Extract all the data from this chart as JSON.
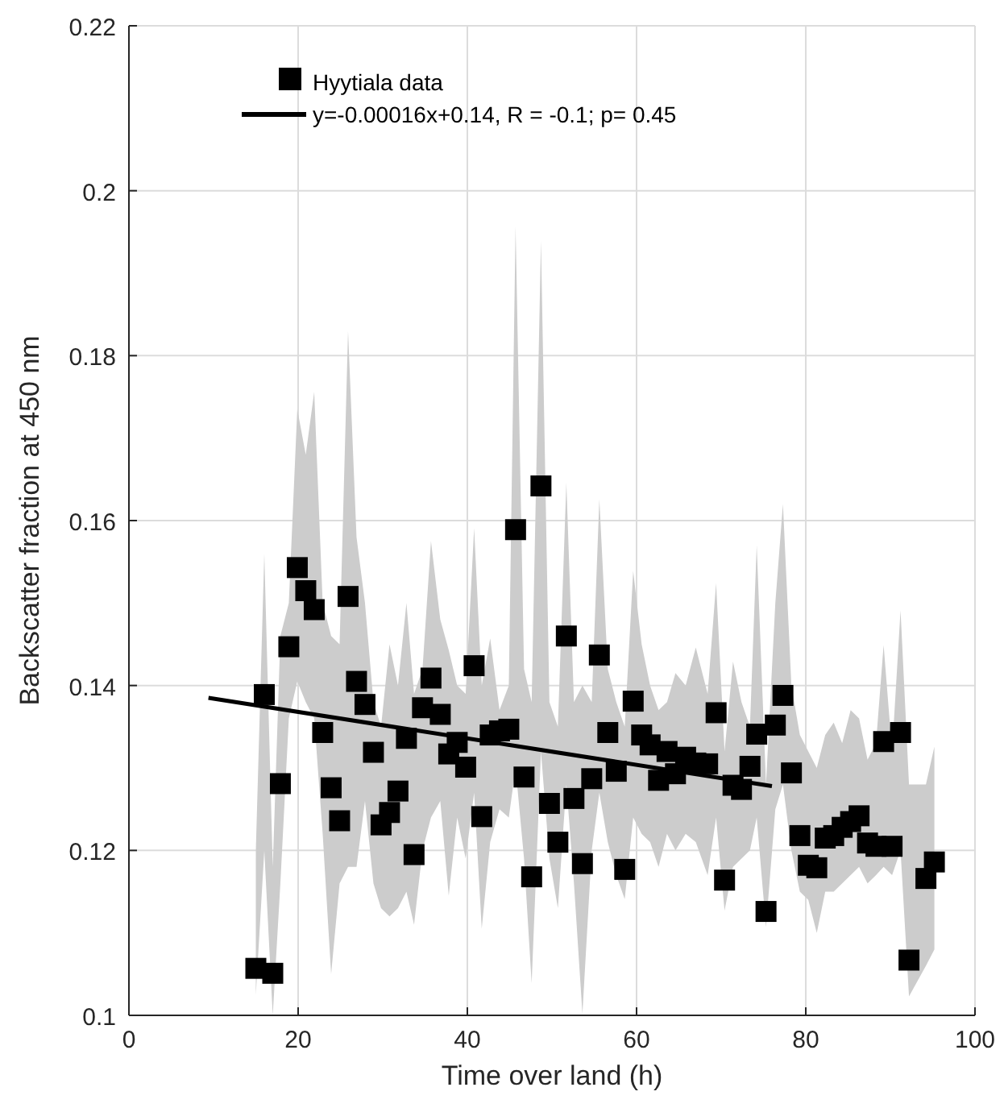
{
  "chart_data": {
    "type": "scatter",
    "xlabel": "Time over land (h)",
    "ylabel": "Backscatter fraction at 450 nm",
    "xlim": [
      0,
      100
    ],
    "xticks": [
      0,
      20,
      40,
      60,
      80,
      100
    ],
    "ylim": [
      0.1,
      0.22
    ],
    "yticks": [
      0.1,
      0.12,
      0.14,
      0.16,
      0.18,
      0.2,
      0.22
    ],
    "grid": true,
    "legend": "top left",
    "series": [
      {
        "name": "Hyytiala data",
        "marker": "square",
        "color": "#000000",
        "x": [
          15.0,
          16.0,
          17.0,
          17.9,
          18.9,
          19.9,
          20.9,
          21.9,
          22.9,
          23.9,
          24.9,
          25.9,
          26.9,
          27.9,
          28.9,
          29.8,
          30.8,
          31.8,
          32.8,
          33.7,
          34.7,
          35.7,
          36.8,
          37.8,
          38.8,
          39.8,
          40.8,
          41.7,
          42.7,
          43.8,
          44.9,
          45.7,
          46.7,
          47.6,
          48.7,
          49.7,
          50.7,
          51.7,
          52.6,
          53.6,
          54.7,
          55.6,
          56.6,
          57.6,
          58.6,
          59.6,
          60.6,
          61.6,
          62.6,
          63.6,
          64.6,
          65.8,
          67.0,
          68.4,
          69.4,
          70.4,
          71.4,
          72.4,
          73.4,
          74.2,
          75.3,
          76.4,
          77.3,
          78.3,
          79.3,
          80.3,
          81.3,
          82.3,
          83.3,
          84.3,
          85.3,
          86.3,
          87.3,
          88.3,
          89.2,
          90.2,
          91.2,
          92.2,
          94.2,
          95.2
        ],
        "values": [
          0.1057,
          0.1389,
          0.1051,
          0.1281,
          0.1447,
          0.1543,
          0.1515,
          0.1492,
          0.1343,
          0.1276,
          0.1236,
          0.1508,
          0.1405,
          0.1377,
          0.1319,
          0.1231,
          0.1246,
          0.1272,
          0.1336,
          0.1195,
          0.1373,
          0.1409,
          0.1365,
          0.1317,
          0.1331,
          0.1301,
          0.1424,
          0.1241,
          0.134,
          0.1345,
          0.1347,
          0.1589,
          0.1289,
          0.1168,
          0.1642,
          0.1257,
          0.121,
          0.146,
          0.1263,
          0.1184,
          0.1287,
          0.1437,
          0.1343,
          0.1296,
          0.1177,
          0.1381,
          0.134,
          0.1328,
          0.1285,
          0.132,
          0.1293,
          0.1313,
          0.1306,
          0.1305,
          0.1367,
          0.1164,
          0.1279,
          0.1274,
          0.1302,
          0.1341,
          0.1126,
          0.1352,
          0.1388,
          0.1294,
          0.1218,
          0.1182,
          0.1179,
          0.1215,
          0.1218,
          0.1228,
          0.1235,
          0.1242,
          0.1209,
          0.1205,
          0.1332,
          0.1205,
          0.1343,
          0.1067,
          0.1166,
          0.1186
        ],
        "lower": [
          0.1025,
          0.12,
          0.1,
          0.116,
          0.136,
          0.1405,
          0.138,
          0.136,
          0.122,
          0.105,
          0.116,
          0.118,
          0.118,
          0.126,
          0.116,
          0.113,
          0.112,
          0.113,
          0.115,
          0.111,
          0.12,
          0.124,
          0.126,
          0.1145,
          0.124,
          0.119,
          0.127,
          0.1105,
          0.121,
          0.125,
          0.124,
          0.13,
          0.119,
          0.1039,
          0.132,
          0.119,
          0.113,
          0.128,
          0.116,
          0.1002,
          0.12,
          0.127,
          0.121,
          0.117,
          0.1141,
          0.124,
          0.122,
          0.121,
          0.118,
          0.122,
          0.12,
          0.122,
          0.121,
          0.117,
          0.124,
          0.1127,
          0.118,
          0.119,
          0.12,
          0.124,
          0.1107,
          0.125,
          0.128,
          0.12,
          0.115,
          0.114,
          0.11,
          0.115,
          0.115,
          0.116,
          0.117,
          0.118,
          0.116,
          0.117,
          0.118,
          0.117,
          0.12,
          0.1023,
          0.106,
          0.108
        ],
        "upper": [
          0.12,
          0.156,
          0.118,
          0.146,
          0.15,
          0.1735,
          0.168,
          0.1756,
          0.15,
          0.146,
          0.145,
          0.183,
          0.158,
          0.15,
          0.138,
          0.135,
          0.145,
          0.14,
          0.15,
          0.139,
          0.142,
          0.1575,
          0.148,
          0.1443,
          0.14,
          0.139,
          0.1591,
          0.14,
          0.1457,
          0.137,
          0.14,
          0.1957,
          0.142,
          0.138,
          0.1939,
          0.138,
          0.135,
          0.1646,
          0.138,
          0.14,
          0.138,
          0.1626,
          0.142,
          0.138,
          0.135,
          0.1539,
          0.145,
          0.14,
          0.137,
          0.138,
          0.1415,
          0.14,
          0.1446,
          0.139,
          0.1524,
          0.132,
          0.1429,
          0.138,
          0.135,
          0.157,
          0.128,
          0.15,
          0.162,
          0.14,
          0.134,
          0.132,
          0.13,
          0.134,
          0.1355,
          0.133,
          0.137,
          0.136,
          0.131,
          0.133,
          0.1449,
          0.132,
          0.1491,
          0.128,
          0.128,
          0.1326
        ]
      },
      {
        "name": "y=-0.00016x+0.14, R = -0.1; p= 0.45",
        "type": "line",
        "line_style": "solid",
        "color": "#000000",
        "x": [
          9.4,
          76
        ],
        "values": [
          0.1385,
          0.1278
        ]
      }
    ]
  }
}
